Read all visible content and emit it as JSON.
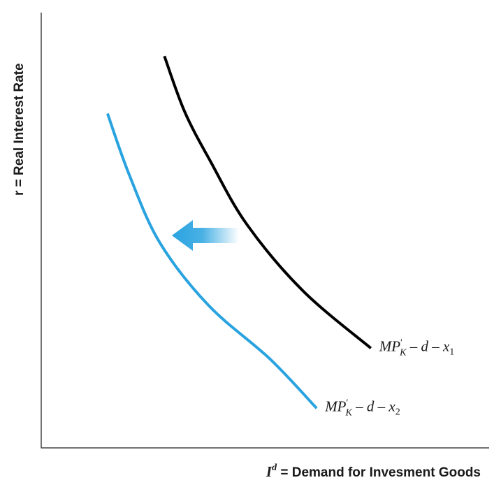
{
  "chart_data": {
    "type": "line",
    "title": "",
    "xlabel": {
      "var": "I",
      "sup": "d",
      "rest": " = Demand for Invesment Goods"
    },
    "ylabel": "r = Real Interest Rate",
    "xlim": [
      0,
      100
    ],
    "ylim": [
      0,
      100
    ],
    "grid": false,
    "ticks": false,
    "series": [
      {
        "name": "MP'K – d – x1",
        "label": {
          "main": "MP",
          "sup": "'",
          "sub": "K",
          "rest": " – d – x",
          "index": "1"
        },
        "color": "#000000",
        "points": [
          [
            27.5,
            90.0
          ],
          [
            32.0,
            77.3
          ],
          [
            37.8,
            65.8
          ],
          [
            46.0,
            51.2
          ],
          [
            58.5,
            36.0
          ],
          [
            73.6,
            22.9
          ]
        ]
      },
      {
        "name": "MP'K – d – x2",
        "label": {
          "main": "MP",
          "sup": "'",
          "sub": "K",
          "rest": " – d – x",
          "index": "2"
        },
        "color": "#29a3e0",
        "points": [
          [
            14.8,
            76.8
          ],
          [
            19.7,
            62.6
          ],
          [
            26.5,
            47.1
          ],
          [
            37.4,
            32.7
          ],
          [
            51.1,
            20.4
          ],
          [
            61.5,
            9.1
          ]
        ]
      }
    ],
    "annotation": {
      "type": "shift-arrow",
      "direction": "left",
      "color": "#29a3e0"
    }
  }
}
